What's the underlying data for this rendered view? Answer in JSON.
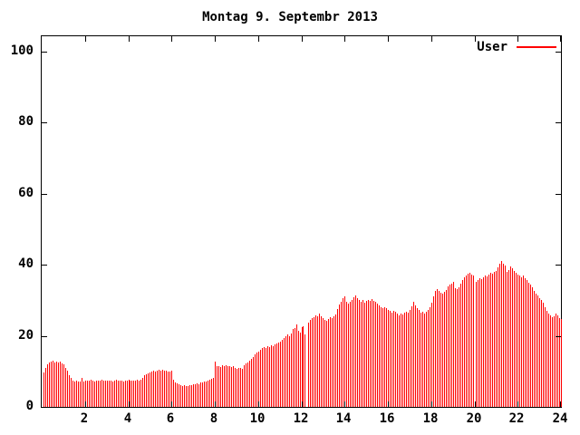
{
  "title": "Montag 9. Septembr 2013",
  "legend": {
    "label": "User"
  },
  "colors": {
    "series": "#ff0000",
    "axis": "#000000",
    "background": "#ffffff"
  },
  "chart_data": {
    "type": "bar",
    "title": "Montag 9. Septembr 2013",
    "series_name": "User",
    "bar_color": "#ff0000",
    "xlabel": "",
    "ylabel": "",
    "xlim": [
      0,
      24
    ],
    "ylim": [
      0,
      104.3
    ],
    "x_ticks": [
      2,
      4,
      6,
      8,
      10,
      12,
      14,
      16,
      18,
      20,
      22,
      24
    ],
    "y_ticks": [
      0,
      20,
      40,
      60,
      80,
      100
    ],
    "grid": false,
    "legend_position": "top-right-inside",
    "sample_interval_minutes": 5,
    "first_sample_hour": 0.0833,
    "values": [
      9.8,
      11.0,
      11.9,
      12.5,
      12.8,
      12.9,
      12.6,
      12.8,
      12.5,
      12.7,
      12.3,
      12.0,
      11.0,
      10.2,
      8.9,
      8.1,
      7.5,
      7.2,
      7.3,
      7.1,
      7.2,
      8.2,
      7.2,
      7.3,
      7.5,
      7.3,
      7.6,
      7.4,
      7.2,
      7.5,
      7.3,
      7.4,
      7.6,
      7.3,
      7.5,
      7.4,
      7.3,
      7.5,
      7.2,
      7.4,
      7.6,
      7.3,
      7.5,
      7.4,
      7.2,
      7.5,
      7.3,
      7.6,
      7.4,
      7.3,
      7.5,
      7.4,
      7.6,
      7.5,
      7.7,
      8.3,
      8.9,
      9.2,
      9.5,
      9.8,
      10.0,
      10.2,
      9.9,
      10.3,
      10.5,
      10.2,
      10.4,
      10.1,
      10.3,
      10.0,
      9.9,
      10.1,
      7.7,
      6.9,
      6.6,
      6.4,
      6.2,
      6.0,
      6.1,
      5.9,
      6.0,
      6.2,
      6.1,
      6.3,
      6.4,
      6.6,
      6.5,
      6.8,
      7.0,
      7.2,
      7.1,
      7.4,
      7.7,
      7.9,
      8.1,
      12.8,
      11.4,
      11.6,
      11.3,
      11.7,
      11.5,
      11.8,
      11.4,
      11.6,
      11.2,
      11.5,
      11.0,
      10.8,
      10.9,
      11.1,
      10.8,
      11.8,
      12.2,
      12.6,
      13.1,
      13.5,
      14.0,
      14.8,
      15.2,
      15.6,
      16.1,
      16.5,
      16.9,
      16.6,
      17.1,
      16.8,
      17.3,
      17.0,
      17.6,
      17.9,
      18.2,
      18.5,
      18.9,
      19.4,
      19.8,
      20.3,
      19.9,
      20.6,
      21.9,
      22.3,
      23.2,
      21.4,
      21.0,
      22.4,
      22.8,
      20.5,
      0,
      23.7,
      24.4,
      24.9,
      25.3,
      25.8,
      25.4,
      26.3,
      25.6,
      25.1,
      24.6,
      24.2,
      24.8,
      25.2,
      25.0,
      25.4,
      26.1,
      27.6,
      28.8,
      29.6,
      30.5,
      31.1,
      29.7,
      29.2,
      29.6,
      30.1,
      30.8,
      31.4,
      30.6,
      30.0,
      29.7,
      30.1,
      29.4,
      29.8,
      30.2,
      29.8,
      30.3,
      29.9,
      29.5,
      29.0,
      28.5,
      28.1,
      27.7,
      28.2,
      27.8,
      27.4,
      27.0,
      26.6,
      27.1,
      26.7,
      26.3,
      25.9,
      26.4,
      26.0,
      26.5,
      26.9,
      26.6,
      27.2,
      28.3,
      29.6,
      28.7,
      27.8,
      27.2,
      26.6,
      26.9,
      26.3,
      26.7,
      27.3,
      28.2,
      29.4,
      31.2,
      32.6,
      33.1,
      32.7,
      32.2,
      31.8,
      32.4,
      33.0,
      33.9,
      34.4,
      34.8,
      35.2,
      33.5,
      33.1,
      33.8,
      34.6,
      35.7,
      36.4,
      37.0,
      37.4,
      37.8,
      37.2,
      36.9,
      0,
      35.2,
      35.8,
      36.3,
      35.9,
      36.5,
      37.0,
      36.7,
      37.2,
      37.8,
      37.4,
      37.9,
      38.3,
      39.3,
      40.2,
      41.0,
      40.4,
      39.7,
      37.9,
      38.6,
      39.5,
      39.1,
      38.4,
      37.7,
      37.3,
      37.0,
      36.6,
      36.9,
      36.2,
      35.6,
      34.9,
      34.4,
      33.6,
      32.7,
      31.9,
      31.4,
      30.5,
      30.1,
      29.3,
      28.0,
      27.1,
      26.3,
      25.9,
      25.2,
      25.5,
      26.3,
      25.7,
      25.0,
      24.8
    ]
  }
}
